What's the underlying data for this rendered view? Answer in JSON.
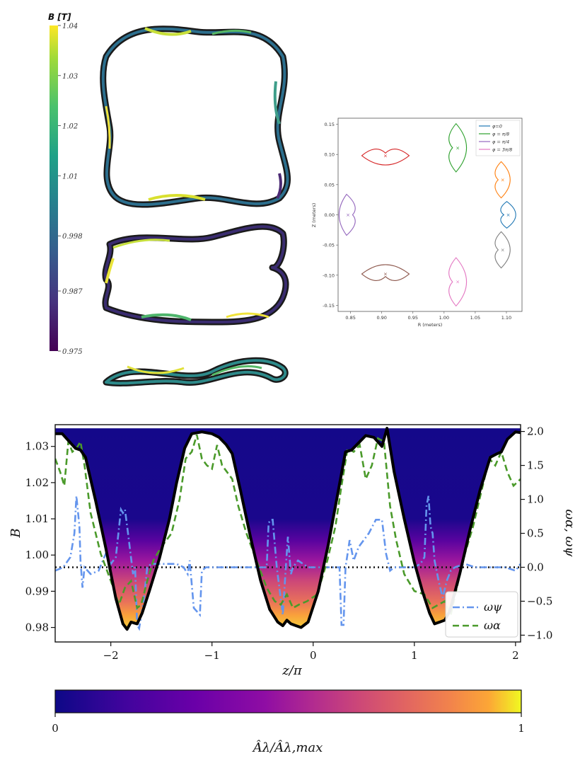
{
  "chart_data": [
    {
      "type": "heatmap",
      "panel": "coil-colorbar",
      "title": "B [T]",
      "colormap": "viridis",
      "range": [
        0.975,
        1.04
      ],
      "ticks": [
        "1.04",
        "1.03",
        "1.02",
        "1.01",
        "0.998",
        "0.987",
        "0.975"
      ],
      "tick_values": [
        1.04,
        1.03,
        1.02,
        1.01,
        0.998,
        0.987,
        0.975
      ]
    },
    {
      "type": "line",
      "panel": "cross-sections",
      "xlabel": "R (meters)",
      "ylabel": "Z (meters)",
      "xlim": [
        0.83,
        1.125
      ],
      "ylim": [
        -0.16,
        0.16
      ],
      "xticks": [
        "0.85",
        "0.90",
        "0.95",
        "1.00",
        "1.05",
        "1.10"
      ],
      "xtick_values": [
        0.85,
        0.9,
        0.95,
        1.0,
        1.05,
        1.1
      ],
      "yticks": [
        "0.15",
        "0.10",
        "0.05",
        "0.00",
        "-0.05",
        "-0.10",
        "-0.15"
      ],
      "ytick_values": [
        0.15,
        0.1,
        0.05,
        0.0,
        -0.05,
        -0.1,
        -0.15
      ],
      "legend": [
        "φ=0",
        "φ = π/8",
        "φ = π/4",
        "φ = 3π/8"
      ],
      "legend_colors": [
        "#1f77b4",
        "#2ca02c",
        "#9467bd",
        "#e377c2"
      ],
      "legend_placement": "top-right",
      "sections": [
        {
          "color": "#1f77b4",
          "center": [
            1.103,
            0.0
          ],
          "axis": [
            0.012,
            0.022
          ]
        },
        {
          "color": "#ff7f0e",
          "center": [
            1.094,
            0.058
          ],
          "axis": [
            0.012,
            0.03
          ]
        },
        {
          "color": "#2ca02c",
          "center": [
            1.022,
            0.111
          ],
          "axis": [
            0.014,
            0.04
          ]
        },
        {
          "color": "#d62728",
          "center": [
            0.906,
            0.098
          ],
          "axis": [
            0.038,
            0.014
          ]
        },
        {
          "color": "#9467bd",
          "center": [
            0.846,
            0.0
          ],
          "axis": [
            0.012,
            0.034
          ]
        },
        {
          "color": "#8c564b",
          "center": [
            0.906,
            -0.098
          ],
          "axis": [
            0.038,
            0.014
          ]
        },
        {
          "color": "#e377c2",
          "center": [
            1.022,
            -0.111
          ],
          "axis": [
            0.014,
            0.04
          ]
        },
        {
          "color": "#7f7f7f",
          "center": [
            1.094,
            -0.058
          ],
          "axis": [
            0.012,
            0.03
          ]
        }
      ]
    },
    {
      "type": "line",
      "panel": "field-line",
      "xlabel": "z/π",
      "ylabel": "B",
      "ylabel_right": "ωα,   ωψ",
      "xlim": [
        -2.55,
        2.05
      ],
      "ylim": [
        0.976,
        1.036
      ],
      "y2lim": [
        -1.1,
        2.1
      ],
      "xticks": [
        "−2",
        "−1",
        "0",
        "1",
        "2"
      ],
      "xtick_values": [
        -2,
        -1,
        0,
        1,
        2
      ],
      "yticks": [
        "1.03",
        "1.02",
        "1.01",
        "1.00",
        "0.99",
        "0.98"
      ],
      "ytick_values": [
        1.03,
        1.02,
        1.01,
        1.0,
        0.99,
        0.98
      ],
      "y2ticks": [
        "2.0",
        "1.5",
        "1.0",
        "0.5",
        "0.0",
        "−0.5",
        "−1.0"
      ],
      "y2tick_values": [
        2.0,
        1.5,
        1.0,
        0.5,
        0.0,
        -0.5,
        -1.0
      ],
      "dotted_line_y2": 0.0,
      "legend": [
        "ωψ",
        "ωα"
      ],
      "legend_placement": "lower-right",
      "series": [
        {
          "name": "B",
          "color": "#000000",
          "x": [
            -2.55,
            -2.48,
            -2.4,
            -2.35,
            -2.3,
            -2.25,
            -2.15,
            -2.05,
            -1.95,
            -1.88,
            -1.84,
            -1.8,
            -1.74,
            -1.69,
            -1.62,
            -1.52,
            -1.42,
            -1.35,
            -1.27,
            -1.2,
            -1.1,
            -1.0,
            -0.93,
            -0.86,
            -0.8,
            -0.72,
            -0.62,
            -0.52,
            -0.43,
            -0.35,
            -0.3,
            -0.26,
            -0.22,
            -0.17,
            -0.12,
            -0.05,
            0.05,
            0.15,
            0.25,
            0.32,
            0.38,
            0.45,
            0.52,
            0.6,
            0.68,
            0.73,
            0.8,
            0.9,
            1.0,
            1.08,
            1.15,
            1.2,
            1.25,
            1.3,
            1.35,
            1.45,
            1.55,
            1.65,
            1.75,
            1.82,
            1.86,
            1.92,
            2.0,
            2.05
          ],
          "values": [
            1.0335,
            1.0335,
            1.031,
            1.0295,
            1.029,
            1.027,
            1.015,
            1.002,
            0.988,
            0.981,
            0.9795,
            0.9815,
            0.981,
            0.984,
            0.99,
            0.999,
            1.01,
            1.02,
            1.0295,
            1.0335,
            1.034,
            1.0335,
            1.0325,
            1.0305,
            1.028,
            1.018,
            1.005,
            0.993,
            0.985,
            0.9815,
            0.9805,
            0.982,
            0.981,
            0.9805,
            0.98,
            0.9815,
            0.99,
            1.003,
            1.018,
            1.0285,
            1.029,
            1.031,
            1.033,
            1.0325,
            1.03,
            1.035,
            1.023,
            1.01,
            0.998,
            0.99,
            0.984,
            0.981,
            0.9815,
            0.982,
            0.9845,
            0.995,
            1.007,
            1.018,
            1.027,
            1.028,
            1.0285,
            1.032,
            1.034,
            1.0338
          ]
        },
        {
          "name": "ωψ",
          "color": "#6495ed",
          "x": [
            -2.55,
            -2.47,
            -2.4,
            -2.36,
            -2.34,
            -2.31,
            -2.3,
            -2.28,
            -2.26,
            -2.2,
            -2.12,
            -2.05,
            -2.0,
            -1.95,
            -1.9,
            -1.88,
            -1.86,
            -1.83,
            -1.78,
            -1.76,
            -1.74,
            -1.72,
            -1.68,
            -1.64,
            -1.6,
            -1.52,
            -1.42,
            -1.35,
            -1.28,
            -1.24,
            -1.22,
            -1.18,
            -1.12,
            -1.1,
            -1.06,
            -1.0,
            -0.9,
            -0.8,
            -0.7,
            -0.6,
            -0.52,
            -0.46,
            -0.44,
            -0.42,
            -0.4,
            -0.36,
            -0.3,
            -0.27,
            -0.25,
            -0.22,
            -0.2,
            -0.15,
            -0.1,
            -0.05,
            0.05,
            0.15,
            0.22,
            0.26,
            0.28,
            0.3,
            0.32,
            0.36,
            0.4,
            0.45,
            0.55,
            0.62,
            0.68,
            0.72,
            0.76,
            0.8,
            0.9,
            1.0,
            1.06,
            1.1,
            1.12,
            1.14,
            1.16,
            1.18,
            1.2,
            1.24,
            1.28,
            1.32,
            1.36,
            1.4,
            1.5,
            1.6,
            1.7,
            1.8,
            1.9,
            2.0,
            2.05
          ],
          "values": [
            -0.05,
            0.0,
            0.15,
            0.5,
            1.05,
            0.6,
            0.1,
            -0.3,
            0.0,
            -0.1,
            -0.05,
            0.2,
            0.05,
            0.15,
            0.85,
            0.8,
            0.85,
            0.5,
            -0.1,
            0.0,
            -0.85,
            -0.9,
            -0.55,
            0.0,
            0.05,
            0.05,
            0.05,
            0.05,
            0.0,
            -0.1,
            0.1,
            -0.6,
            -0.7,
            -0.05,
            0.0,
            0.0,
            0.0,
            0.0,
            0.0,
            0.0,
            0.0,
            0.0,
            0.65,
            0.7,
            0.7,
            0.0,
            -0.7,
            0.0,
            0.45,
            -0.1,
            0.0,
            0.1,
            0.05,
            0.0,
            0.0,
            0.0,
            0.0,
            0.0,
            -0.85,
            -0.85,
            0.0,
            0.4,
            0.1,
            0.3,
            0.5,
            0.7,
            0.7,
            0.2,
            -0.05,
            0.0,
            0.0,
            0.0,
            0.05,
            0.15,
            0.9,
            1.05,
            0.6,
            0.5,
            0.1,
            -0.2,
            -0.45,
            -0.2,
            -0.05,
            0.0,
            0.05,
            0.0,
            0.0,
            0.0,
            0.0,
            -0.05,
            0.05
          ]
        },
        {
          "name": "ωα",
          "color": "#4a9a2a",
          "x": [
            -2.55,
            -2.5,
            -2.46,
            -2.42,
            -2.38,
            -2.34,
            -2.3,
            -2.26,
            -2.2,
            -2.1,
            -2.0,
            -1.92,
            -1.86,
            -1.8,
            -1.74,
            -1.7,
            -1.64,
            -1.58,
            -1.5,
            -1.4,
            -1.32,
            -1.26,
            -1.2,
            -1.15,
            -1.1,
            -1.05,
            -1.0,
            -0.95,
            -0.9,
            -0.85,
            -0.8,
            -0.74,
            -0.66,
            -0.56,
            -0.46,
            -0.38,
            -0.32,
            -0.26,
            -0.2,
            -0.14,
            -0.06,
            0.04,
            0.14,
            0.22,
            0.28,
            0.34,
            0.4,
            0.46,
            0.52,
            0.58,
            0.64,
            0.7,
            0.76,
            0.82,
            0.9,
            1.0,
            1.1,
            1.18,
            1.24,
            1.3,
            1.36,
            1.42,
            1.5,
            1.58,
            1.66,
            1.74,
            1.8,
            1.86,
            1.92,
            1.98,
            2.05
          ],
          "values": [
            1.6,
            1.4,
            1.2,
            1.85,
            1.7,
            1.75,
            1.85,
            1.5,
            0.8,
            0.2,
            -0.2,
            -0.55,
            -0.3,
            -0.2,
            -0.6,
            -0.55,
            -0.2,
            0.1,
            0.3,
            0.5,
            1.0,
            1.6,
            1.7,
            1.95,
            1.6,
            1.5,
            1.45,
            1.8,
            1.5,
            1.4,
            1.3,
            0.9,
            0.5,
            0.1,
            -0.3,
            -0.5,
            -0.55,
            -0.4,
            -0.6,
            -0.55,
            -0.5,
            -0.4,
            0.1,
            0.6,
            1.2,
            1.75,
            1.7,
            1.8,
            1.3,
            1.5,
            1.9,
            1.85,
            0.9,
            0.4,
            -0.1,
            -0.35,
            -0.4,
            -0.6,
            -0.55,
            -0.5,
            -0.7,
            -0.3,
            0.2,
            0.6,
            1.1,
            1.6,
            1.5,
            1.7,
            1.4,
            1.2,
            1.3
          ]
        }
      ]
    },
    {
      "type": "heatmap",
      "panel": "bottom-colorbar",
      "colormap": "plasma",
      "range": [
        0,
        1
      ],
      "ticks": [
        "0",
        "1"
      ],
      "tick_values": [
        0,
        1
      ],
      "xlabel": "Âλ/Âλ,max"
    }
  ]
}
